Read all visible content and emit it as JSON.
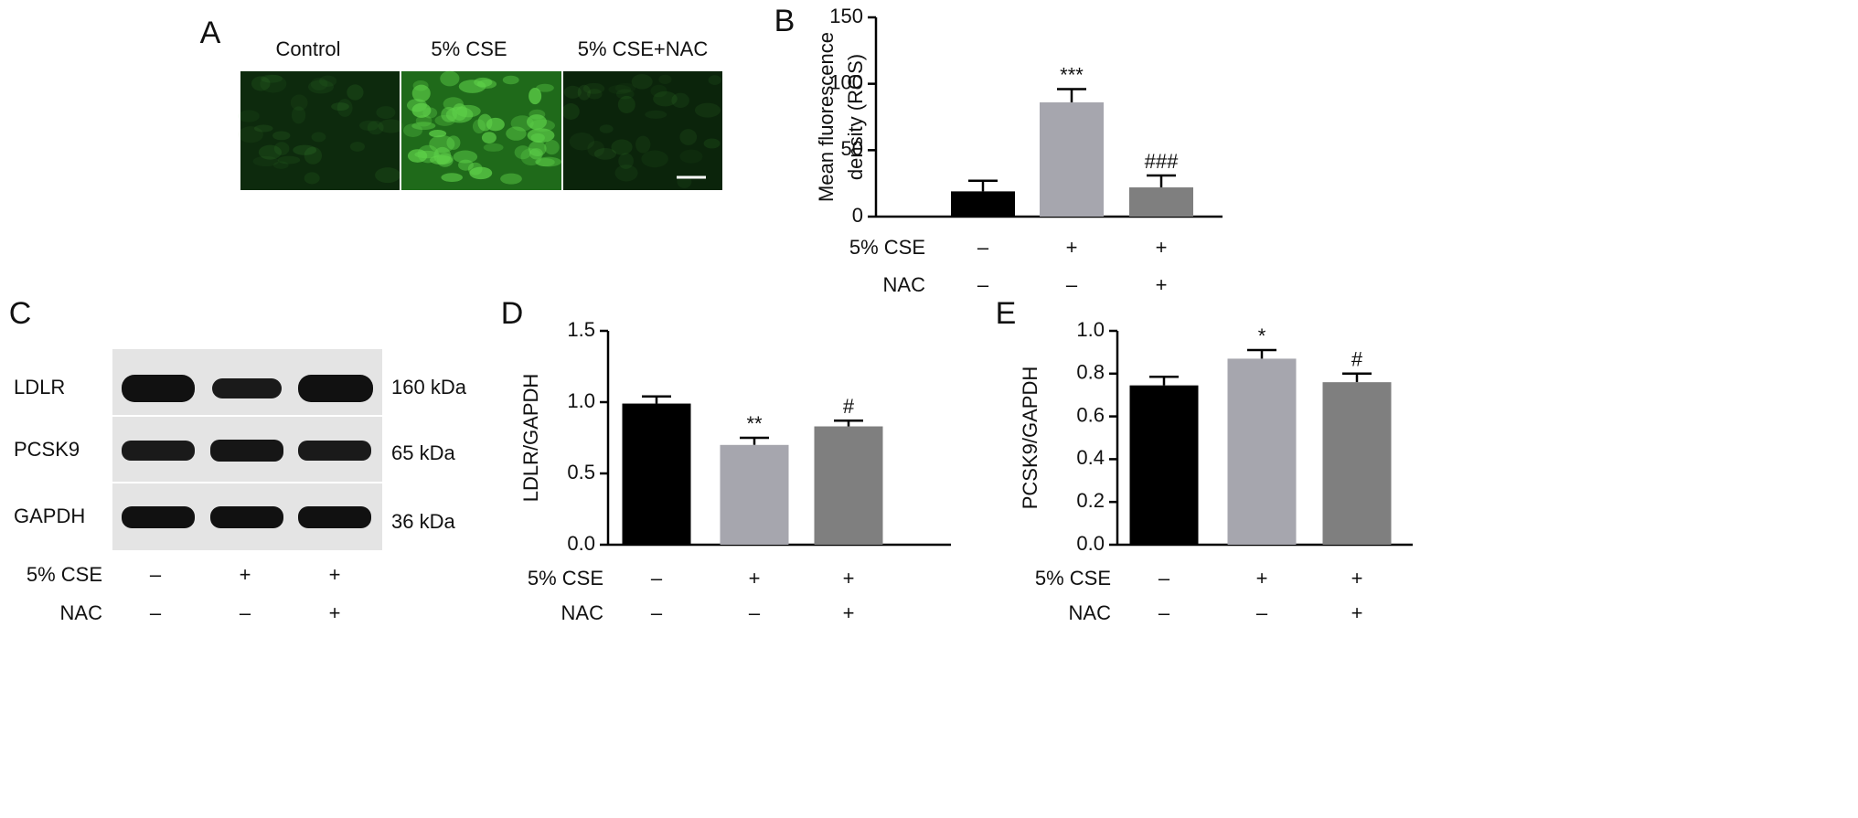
{
  "panels": {
    "A": {
      "letter": "A",
      "images": [
        "Control",
        "5% CSE",
        "5% CSE+NAC"
      ]
    },
    "C": {
      "letter": "C",
      "bands": [
        {
          "protein": "LDLR",
          "size": "160 kDa"
        },
        {
          "protein": "PCSK9",
          "size": "65 kDa"
        },
        {
          "protein": "GAPDH",
          "size": "36 kDa"
        }
      ],
      "conditions": [
        {
          "label": "5% CSE",
          "signs": [
            "–",
            "+",
            "+"
          ]
        },
        {
          "label": "NAC",
          "signs": [
            "–",
            "–",
            "+"
          ]
        }
      ]
    }
  },
  "chart_data": [
    {
      "type": "bar",
      "panel": "B",
      "ylabel": [
        "Mean fluorescence",
        "density (ROS)"
      ],
      "values": [
        19,
        86,
        22
      ],
      "errors": [
        8,
        10,
        9
      ],
      "colors": [
        "#000000",
        "#a6a6ae",
        "#7f7f7f"
      ],
      "significance": [
        null,
        "***",
        "###"
      ],
      "ylim": [
        0,
        150
      ],
      "yticks": [
        0,
        50,
        100,
        150
      ],
      "conditions": [
        {
          "label": "5% CSE",
          "signs": [
            "–",
            "+",
            "+"
          ]
        },
        {
          "label": "NAC",
          "signs": [
            "–",
            "–",
            "+"
          ]
        }
      ]
    },
    {
      "type": "bar",
      "panel": "D",
      "ylabel": [
        "LDLR/GAPDH"
      ],
      "values": [
        0.99,
        0.7,
        0.83
      ],
      "errors": [
        0.05,
        0.05,
        0.04
      ],
      "colors": [
        "#000000",
        "#a6a6ae",
        "#7f7f7f"
      ],
      "significance": [
        null,
        "**",
        "#"
      ],
      "ylim": [
        0,
        1.5
      ],
      "yticks": [
        {
          "value": 0,
          "label": "0.0"
        },
        {
          "value": 0.5,
          "label": "0.5"
        },
        {
          "value": 1,
          "label": "1.0"
        },
        {
          "value": 1.5,
          "label": "1.5"
        }
      ],
      "conditions": [
        {
          "label": "5% CSE",
          "signs": [
            "–",
            "+",
            "+"
          ]
        },
        {
          "label": "NAC",
          "signs": [
            "–",
            "–",
            "+"
          ]
        }
      ]
    },
    {
      "type": "bar",
      "panel": "E",
      "ylabel": [
        "PCSK9/GAPDH"
      ],
      "values": [
        0.745,
        0.87,
        0.76
      ],
      "errors": [
        0.04,
        0.04,
        0.04
      ],
      "colors": [
        "#000000",
        "#a6a6ae",
        "#7f7f7f"
      ],
      "significance": [
        null,
        "*",
        "#"
      ],
      "ylim": [
        0,
        1
      ],
      "yticks": [
        {
          "value": 0,
          "label": "0.0"
        },
        {
          "value": 0.2,
          "label": "0.2"
        },
        {
          "value": 0.4,
          "label": "0.4"
        },
        {
          "value": 0.6,
          "label": "0.6"
        },
        {
          "value": 0.8,
          "label": "0.8"
        },
        {
          "value": 1,
          "label": "1.0"
        }
      ],
      "conditions": [
        {
          "label": "5% CSE",
          "signs": [
            "–",
            "+",
            "+"
          ]
        },
        {
          "label": "NAC",
          "signs": [
            "–",
            "–",
            "+"
          ]
        }
      ]
    }
  ]
}
